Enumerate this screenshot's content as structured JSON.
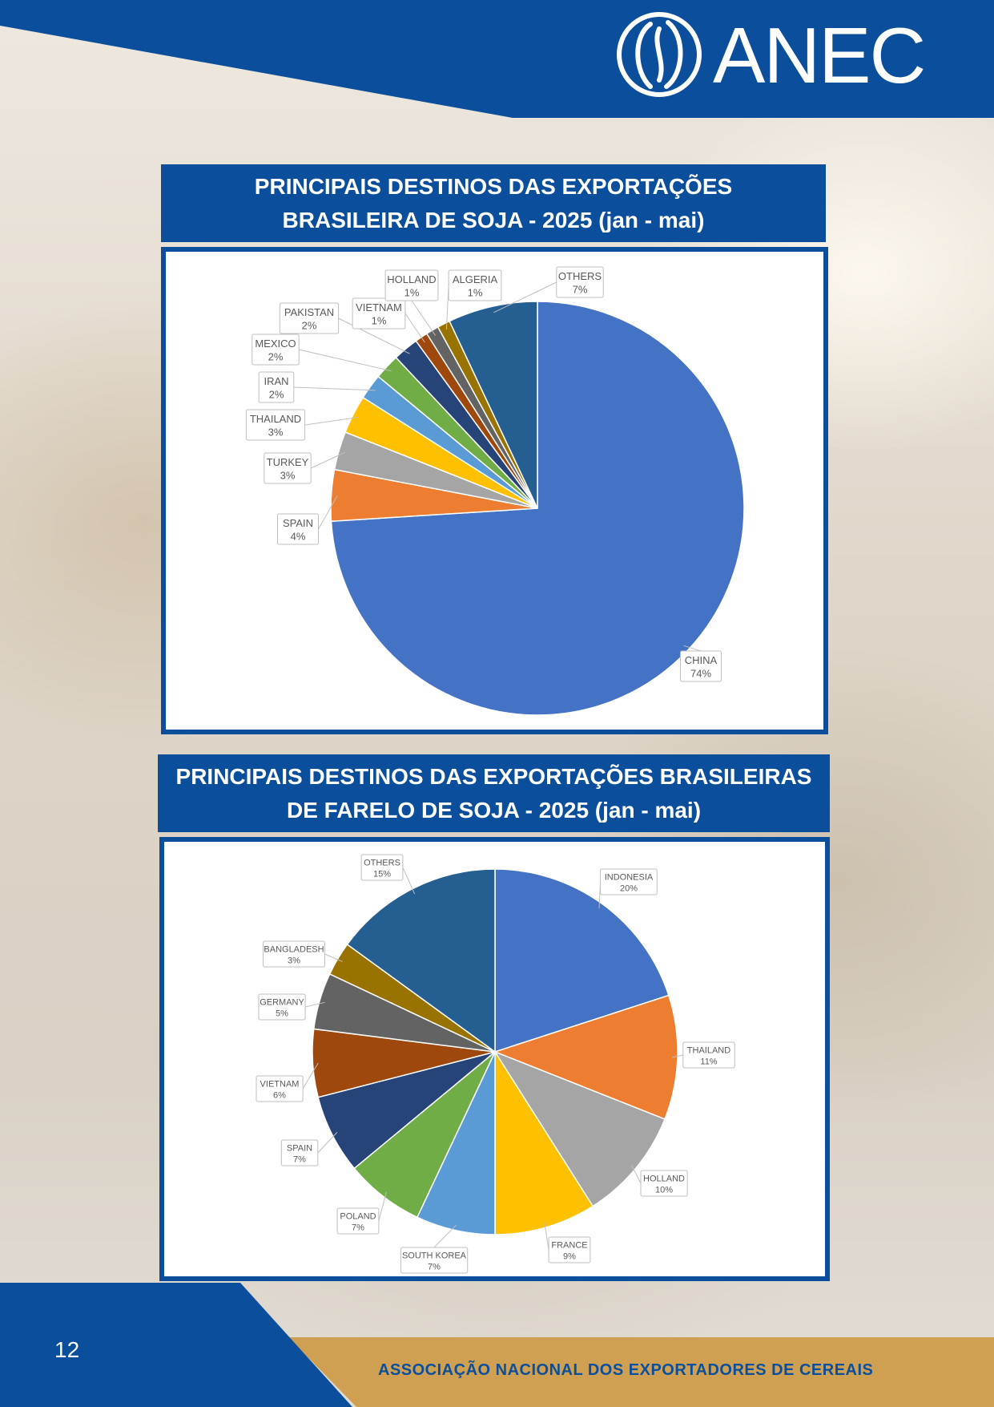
{
  "logo": {
    "text": "ANEC"
  },
  "page_number": "12",
  "footer": {
    "org_name": "ASSOCIAÇÃO NACIONAL DOS EXPORTADORES DE CEREAIS"
  },
  "colors": {
    "brand_blue": "#0b4f9c",
    "brand_gold": "#cfa052"
  },
  "chart_data": [
    {
      "type": "pie",
      "title_lines": [
        "PRINCIPAIS DESTINOS DAS EXPORTAÇÕES",
        "BRASILEIRA DE SOJA - 2025 (jan - mai)"
      ],
      "slices": [
        {
          "label": "CHINA",
          "value": 74,
          "pct_label": "74%",
          "color": "#4472c4"
        },
        {
          "label": "SPAIN",
          "value": 4,
          "pct_label": "4%",
          "color": "#ed7d31"
        },
        {
          "label": "TURKEY",
          "value": 3,
          "pct_label": "3%",
          "color": "#a5a5a5"
        },
        {
          "label": "THAILAND",
          "value": 3,
          "pct_label": "3%",
          "color": "#ffc000"
        },
        {
          "label": "IRAN",
          "value": 2,
          "pct_label": "2%",
          "color": "#5b9bd5"
        },
        {
          "label": "MEXICO",
          "value": 2,
          "pct_label": "2%",
          "color": "#70ad47"
        },
        {
          "label": "PAKISTAN",
          "value": 2,
          "pct_label": "2%",
          "color": "#264478"
        },
        {
          "label": "VIETNAM",
          "value": 1,
          "pct_label": "1%",
          "color": "#9e480e"
        },
        {
          "label": "HOLLAND",
          "value": 1,
          "pct_label": "1%",
          "color": "#636363"
        },
        {
          "label": "ALGERIA",
          "value": 1,
          "pct_label": "1%",
          "color": "#997300"
        },
        {
          "label": "OTHERS",
          "value": 7,
          "pct_label": "7%",
          "color": "#255e91"
        }
      ]
    },
    {
      "type": "pie",
      "title_lines": [
        "PRINCIPAIS DESTINOS DAS EXPORTAÇÕES BRASILEIRAS",
        "DE FARELO DE SOJA - 2025 (jan - mai)"
      ],
      "slices": [
        {
          "label": "INDONESIA",
          "value": 20,
          "pct_label": "20%",
          "color": "#4472c4"
        },
        {
          "label": "THAILAND",
          "value": 11,
          "pct_label": "11%",
          "color": "#ed7d31"
        },
        {
          "label": "HOLLAND",
          "value": 10,
          "pct_label": "10%",
          "color": "#a5a5a5"
        },
        {
          "label": "FRANCE",
          "value": 9,
          "pct_label": "9%",
          "color": "#ffc000"
        },
        {
          "label": "SOUTH KOREA",
          "value": 7,
          "pct_label": "7%",
          "color": "#5b9bd5"
        },
        {
          "label": "POLAND",
          "value": 7,
          "pct_label": "7%",
          "color": "#70ad47"
        },
        {
          "label": "SPAIN",
          "value": 7,
          "pct_label": "7%",
          "color": "#264478"
        },
        {
          "label": "VIETNAM",
          "value": 6,
          "pct_label": "6%",
          "color": "#9e480e"
        },
        {
          "label": "GERMANY",
          "value": 5,
          "pct_label": "5%",
          "color": "#636363"
        },
        {
          "label": "BANGLADESH",
          "value": 3,
          "pct_label": "3%",
          "color": "#997300"
        },
        {
          "label": "OTHERS",
          "value": 15,
          "pct_label": "15%",
          "color": "#255e91"
        }
      ]
    }
  ]
}
